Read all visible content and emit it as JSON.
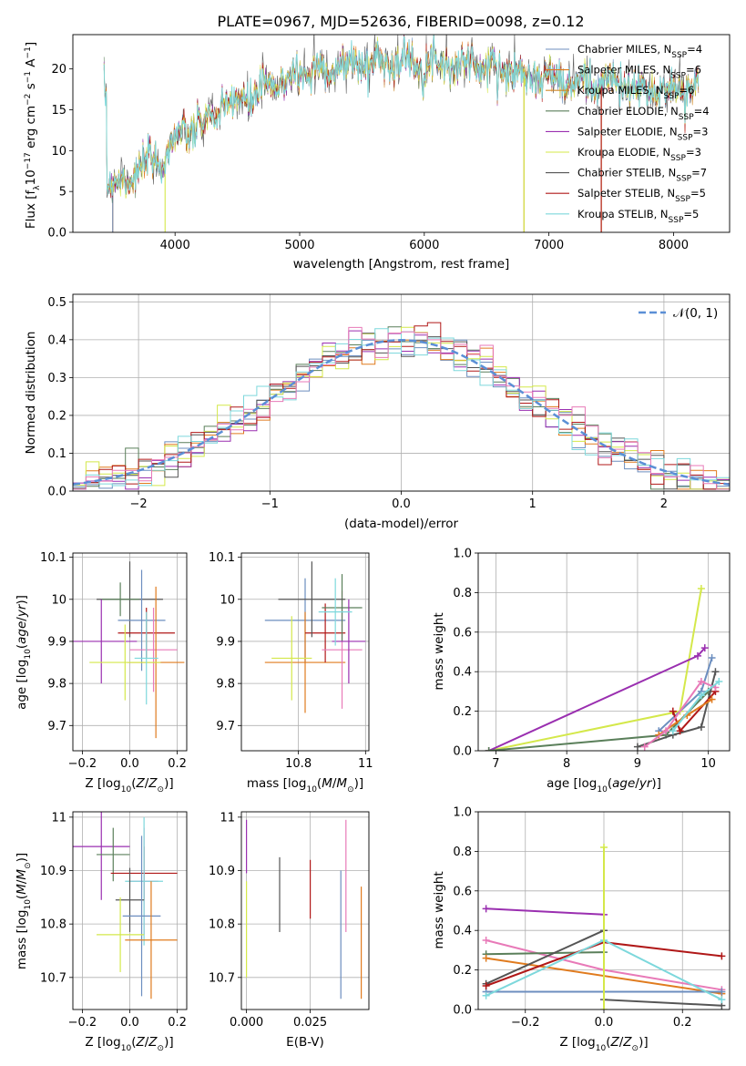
{
  "title": "PLATE=0967, MJD=52636, FIBERID=0098, z=0.12",
  "colors": {
    "Chabrier MILES": "#6c8ebf",
    "Salpeter MILES": "#e07b1e",
    "Kroupa MILES": "#d08a2a",
    "Chabrier ELODIE": "#5a7f5a",
    "Salpeter ELODIE": "#9a2fb0",
    "Kroupa ELODIE": "#d4e84a",
    "Chabrier STELIB": "#555555",
    "Salpeter STELIB": "#b01818",
    "Kroupa STELIB": "#7dd8dc",
    "pink": "#e87ab8",
    "gaussian": "#5b8fd6"
  },
  "chart_data": [
    {
      "type": "line",
      "id": "spectrum",
      "title": "PLATE=0967, MJD=52636, FIBERID=0098, z=0.12",
      "xlabel": "wavelength [Angstrom, rest frame]",
      "ylabel": "Flux [f_λ10^-17 erg cm^-2 s^-1 A^-1]",
      "xlim": [
        3180,
        8450
      ],
      "ylim": [
        0,
        24.2
      ],
      "xticks": [
        4000,
        5000,
        6000,
        7000,
        8000
      ],
      "yticks": [
        0,
        5,
        10,
        15,
        20
      ],
      "legend_position": "top-right",
      "series": [
        {
          "name": "Chabrier MILES, N_SSP=4",
          "color_key": "Chabrier MILES"
        },
        {
          "name": "Salpeter MILES, N_SSP=6",
          "color_key": "Salpeter MILES"
        },
        {
          "name": "Kroupa MILES, N_SSP=6",
          "color_key": "Kroupa MILES"
        },
        {
          "name": "Chabrier ELODIE, N_SSP=4",
          "color_key": "Chabrier ELODIE"
        },
        {
          "name": "Salpeter ELODIE, N_SSP=3",
          "color_key": "Salpeter ELODIE"
        },
        {
          "name": "Kroupa ELODIE, N_SSP=3",
          "color_key": "Kroupa ELODIE"
        },
        {
          "name": "Chabrier STELIB, N_SSP=7",
          "color_key": "Chabrier STELIB"
        },
        {
          "name": "Salpeter STELIB, N_SSP=5",
          "color_key": "Salpeter STELIB"
        },
        {
          "name": "Kroupa STELIB, N_SSP=5",
          "color_key": "Kroupa STELIB"
        }
      ],
      "continuum": [
        [
          3450,
          6.2
        ],
        [
          3550,
          5.8
        ],
        [
          3650,
          7.0
        ],
        [
          3800,
          8.5
        ],
        [
          3900,
          8.8
        ],
        [
          4000,
          11.5
        ],
        [
          4200,
          13.0
        ],
        [
          4400,
          15.5
        ],
        [
          4600,
          16.5
        ],
        [
          4800,
          18.0
        ],
        [
          5000,
          19.5
        ],
        [
          5200,
          20.0
        ],
        [
          5400,
          20.5
        ],
        [
          5600,
          20.8
        ],
        [
          5800,
          21.0
        ],
        [
          6000,
          20.8
        ],
        [
          6200,
          20.7
        ],
        [
          6400,
          20.5
        ],
        [
          6600,
          20.0
        ],
        [
          6800,
          19.5
        ],
        [
          7000,
          19.0
        ],
        [
          7200,
          18.0
        ],
        [
          7400,
          18.5
        ],
        [
          7600,
          18.0
        ],
        [
          7800,
          17.0
        ],
        [
          8000,
          17.5
        ],
        [
          8200,
          17.5
        ]
      ]
    },
    {
      "type": "step",
      "id": "residuals",
      "xlabel": "(data-model)/error",
      "ylabel": "Normed distribution",
      "xlim": [
        -2.5,
        2.5
      ],
      "ylim": [
        0,
        0.52
      ],
      "xticks": [
        -2,
        -1,
        0,
        1,
        2
      ],
      "yticks": [
        0.0,
        0.1,
        0.2,
        0.3,
        0.4,
        0.5
      ],
      "bin_width": 0.1,
      "legend": "N(0,1)",
      "legend_position": "top-right"
    },
    {
      "type": "scatter",
      "id": "age_vs_Z",
      "xlabel": "Z [log10(Z/Z_sun)]",
      "ylabel": "age [log10(age/yr)]",
      "xlim": [
        -0.24,
        0.24
      ],
      "ylim": [
        9.64,
        10.11
      ],
      "xticks": [
        -0.2,
        0.0,
        0.2
      ],
      "yticks": [
        9.7,
        9.8,
        9.9,
        10.0,
        10.1
      ],
      "points": [
        {
          "x": 0.0,
          "xerr": 0.14,
          "y": 10.0,
          "yerr": 0.09,
          "color_key": "Chabrier STELIB"
        },
        {
          "x": -0.04,
          "xerr": 0.08,
          "y": 10.0,
          "yerr": 0.04,
          "color_key": "Chabrier ELODIE"
        },
        {
          "x": 0.07,
          "xerr": 0.12,
          "y": 9.92,
          "yerr": 0.06,
          "color_key": "Salpeter STELIB"
        },
        {
          "x": -0.12,
          "xerr": 0.15,
          "y": 9.9,
          "yerr": 0.1,
          "color_key": "Salpeter ELODIE"
        },
        {
          "x": 0.05,
          "xerr": 0.1,
          "y": 9.95,
          "yerr": 0.12,
          "color_key": "Chabrier MILES"
        },
        {
          "x": 0.1,
          "xerr": 0.1,
          "y": 9.88,
          "yerr": 0.1,
          "color_key": "pink"
        },
        {
          "x": 0.11,
          "xerr": 0.12,
          "y": 9.85,
          "yerr": 0.18,
          "color_key": "Salpeter MILES"
        },
        {
          "x": -0.02,
          "xerr": 0.15,
          "y": 9.85,
          "yerr": 0.09,
          "color_key": "Kroupa ELODIE"
        },
        {
          "x": 0.07,
          "xerr": 0.05,
          "y": 9.86,
          "yerr": 0.11,
          "color_key": "Kroupa STELIB"
        }
      ]
    },
    {
      "type": "scatter",
      "id": "age_vs_mass",
      "xlabel": "mass [log10(M/M_sun)]",
      "ylabel": "",
      "xlim": [
        10.63,
        11.01
      ],
      "ylim": [
        9.64,
        10.11
      ],
      "xticks": [
        10.8,
        11.0
      ],
      "yticks": [
        9.7,
        9.8,
        9.9,
        10.0,
        10.1
      ],
      "points": [
        {
          "x": 10.82,
          "xerr": 0.12,
          "y": 9.95,
          "yerr": 0.1,
          "color_key": "Chabrier MILES"
        },
        {
          "x": 10.82,
          "xerr": 0.12,
          "y": 9.85,
          "yerr": 0.12,
          "color_key": "Salpeter MILES"
        },
        {
          "x": 10.88,
          "xerr": 0.06,
          "y": 9.92,
          "yerr": 0.07,
          "color_key": "Salpeter STELIB"
        },
        {
          "x": 10.93,
          "xerr": 0.06,
          "y": 9.88,
          "yerr": 0.14,
          "color_key": "pink"
        },
        {
          "x": 10.93,
          "xerr": 0.06,
          "y": 9.98,
          "yerr": 0.08,
          "color_key": "Chabrier ELODIE"
        },
        {
          "x": 10.95,
          "xerr": 0.05,
          "y": 9.9,
          "yerr": 0.1,
          "color_key": "Salpeter ELODIE"
        },
        {
          "x": 10.84,
          "xerr": 0.1,
          "y": 10.0,
          "yerr": 0.09,
          "color_key": "Chabrier STELIB"
        },
        {
          "x": 10.91,
          "xerr": 0.05,
          "y": 9.97,
          "yerr": 0.08,
          "color_key": "Kroupa STELIB"
        },
        {
          "x": 10.78,
          "xerr": 0.06,
          "y": 9.86,
          "yerr": 0.1,
          "color_key": "Kroupa ELODIE"
        }
      ]
    },
    {
      "type": "line",
      "id": "massweight_vs_age",
      "xlabel": "age [log10(age/yr)]",
      "ylabel": "mass weight",
      "xlim": [
        6.75,
        10.3
      ],
      "ylim": [
        0,
        1.0
      ],
      "xticks": [
        7,
        8,
        9,
        10
      ],
      "yticks": [
        0.0,
        0.2,
        0.4,
        0.6,
        0.8,
        1.0
      ],
      "series": [
        {
          "color_key": "Kroupa ELODIE",
          "points": [
            [
              6.9,
              0.0
            ],
            [
              9.6,
              0.2
            ],
            [
              9.9,
              0.82
            ]
          ]
        },
        {
          "color_key": "Salpeter ELODIE",
          "points": [
            [
              6.9,
              0.0
            ],
            [
              9.85,
              0.48
            ],
            [
              9.95,
              0.52
            ]
          ]
        },
        {
          "color_key": "Chabrier ELODIE",
          "points": [
            [
              6.9,
              0.0
            ],
            [
              9.4,
              0.08
            ],
            [
              10.0,
              0.3
            ]
          ]
        },
        {
          "color_key": "Chabrier MILES",
          "points": [
            [
              9.3,
              0.1
            ],
            [
              9.9,
              0.3
            ],
            [
              10.05,
              0.47
            ]
          ]
        },
        {
          "color_key": "Chabrier STELIB",
          "points": [
            [
              9.0,
              0.02
            ],
            [
              9.5,
              0.08
            ],
            [
              9.9,
              0.12
            ],
            [
              10.1,
              0.4
            ]
          ]
        },
        {
          "color_key": "Salpeter STELIB",
          "points": [
            [
              9.5,
              0.2
            ],
            [
              9.6,
              0.1
            ],
            [
              10.1,
              0.3
            ]
          ]
        },
        {
          "color_key": "Salpeter MILES",
          "points": [
            [
              9.3,
              0.08
            ],
            [
              9.7,
              0.18
            ],
            [
              10.05,
              0.26
            ]
          ]
        },
        {
          "color_key": "pink",
          "points": [
            [
              9.1,
              0.02
            ],
            [
              9.4,
              0.1
            ],
            [
              9.9,
              0.35
            ],
            [
              10.1,
              0.32
            ]
          ]
        },
        {
          "color_key": "Kroupa STELIB",
          "points": [
            [
              9.5,
              0.1
            ],
            [
              9.9,
              0.28
            ],
            [
              10.15,
              0.35
            ]
          ]
        }
      ]
    },
    {
      "type": "scatter",
      "id": "mass_vs_Z",
      "xlabel": "Z [log10(Z/Z_sun)]",
      "ylabel": "mass [log10(M/M_sun)]",
      "xlim": [
        -0.24,
        0.24
      ],
      "ylim": [
        10.64,
        11.01
      ],
      "xticks": [
        -0.2,
        0.0,
        0.2
      ],
      "yticks": [
        10.7,
        10.8,
        10.9,
        11.0
      ],
      "points": [
        {
          "x": -0.12,
          "xerr": 0.12,
          "y": 10.945,
          "yerr": 0.1,
          "color_key": "Salpeter ELODIE"
        },
        {
          "x": -0.07,
          "xerr": 0.07,
          "y": 10.93,
          "yerr": 0.05,
          "color_key": "Chabrier ELODIE"
        },
        {
          "x": 0.06,
          "xerr": 0.14,
          "y": 10.895,
          "yerr": 0.05,
          "color_key": "Salpeter STELIB"
        },
        {
          "x": 0.06,
          "xerr": 0.06,
          "y": 10.88,
          "yerr": 0.1,
          "color_key": "pink"
        },
        {
          "x": 0.06,
          "xerr": 0.08,
          "y": 10.88,
          "yerr": 0.12,
          "color_key": "Kroupa STELIB"
        },
        {
          "x": 0.0,
          "xerr": 0.06,
          "y": 10.845,
          "yerr": 0.06,
          "color_key": "Chabrier STELIB"
        },
        {
          "x": 0.05,
          "xerr": 0.08,
          "y": 10.815,
          "yerr": 0.15,
          "color_key": "Chabrier MILES"
        },
        {
          "x": -0.04,
          "xerr": 0.1,
          "y": 10.78,
          "yerr": 0.07,
          "color_key": "Kroupa ELODIE"
        },
        {
          "x": 0.09,
          "xerr": 0.11,
          "y": 10.77,
          "yerr": 0.11,
          "color_key": "Salpeter MILES"
        }
      ]
    },
    {
      "type": "errorbar",
      "id": "mass_vs_ebv",
      "xlabel": "E(B-V)",
      "ylabel": "",
      "xlim": [
        -0.002,
        0.048
      ],
      "ylim": [
        10.64,
        11.01
      ],
      "xticks": [
        0.0,
        0.025
      ],
      "xtick_labels": [
        "0.000",
        "0.025"
      ],
      "yticks": [
        10.7,
        10.8,
        10.9,
        11.0
      ],
      "points": [
        {
          "x": 0.0,
          "y": 10.945,
          "yerr": 0.05,
          "color_key": "Salpeter ELODIE"
        },
        {
          "x": 0.0,
          "y": 10.79,
          "yerr": 0.09,
          "color_key": "Kroupa ELODIE"
        },
        {
          "x": 0.013,
          "y": 10.855,
          "yerr": 0.07,
          "color_key": "Chabrier STELIB"
        },
        {
          "x": 0.025,
          "y": 10.865,
          "yerr": 0.055,
          "color_key": "Salpeter STELIB"
        },
        {
          "x": 0.037,
          "y": 10.78,
          "yerr": 0.12,
          "color_key": "Chabrier MILES"
        },
        {
          "x": 0.039,
          "y": 10.89,
          "yerr": 0.105,
          "color_key": "pink"
        },
        {
          "x": 0.045,
          "y": 10.765,
          "yerr": 0.105,
          "color_key": "Salpeter MILES"
        }
      ]
    },
    {
      "type": "line",
      "id": "massweight_vs_Z",
      "xlabel": "Z [log10(Z/Z_sun)]",
      "ylabel": "mass weight",
      "xlim": [
        -0.32,
        0.32
      ],
      "ylim": [
        0,
        1.0
      ],
      "xticks": [
        -0.2,
        0.0,
        0.2
      ],
      "yticks": [
        0.0,
        0.2,
        0.4,
        0.6,
        0.8,
        1.0
      ],
      "series": [
        {
          "color_key": "Salpeter ELODIE",
          "points": [
            [
              -0.3,
              0.51
            ],
            [
              0.0,
              0.48
            ]
          ]
        },
        {
          "color_key": "pink",
          "points": [
            [
              -0.3,
              0.35
            ],
            [
              0.0,
              0.2
            ],
            [
              0.3,
              0.1
            ]
          ]
        },
        {
          "color_key": "Chabrier ELODIE",
          "points": [
            [
              -0.3,
              0.28
            ],
            [
              0.0,
              0.29
            ]
          ]
        },
        {
          "color_key": "Salpeter MILES",
          "points": [
            [
              -0.3,
              0.26
            ],
            [
              0.3,
              0.08
            ]
          ]
        },
        {
          "color_key": "Chabrier MILES",
          "points": [
            [
              -0.3,
              0.09
            ],
            [
              0.3,
              0.09
            ]
          ]
        },
        {
          "color_key": "Chabrier STELIB",
          "points": [
            [
              -0.3,
              0.13
            ],
            [
              0.0,
              0.4
            ],
            [
              0.0,
              0.05
            ],
            [
              0.3,
              0.02
            ]
          ]
        },
        {
          "color_key": "Salpeter STELIB",
          "points": [
            [
              -0.3,
              0.12
            ],
            [
              0.0,
              0.34
            ],
            [
              0.3,
              0.27
            ]
          ]
        },
        {
          "color_key": "Kroupa STELIB",
          "points": [
            [
              -0.3,
              0.07
            ],
            [
              0.0,
              0.35
            ],
            [
              0.3,
              0.05
            ]
          ]
        },
        {
          "color_key": "Kroupa ELODIE",
          "points": [
            [
              0.0,
              0.0
            ],
            [
              0.0,
              0.82
            ]
          ]
        }
      ]
    }
  ]
}
